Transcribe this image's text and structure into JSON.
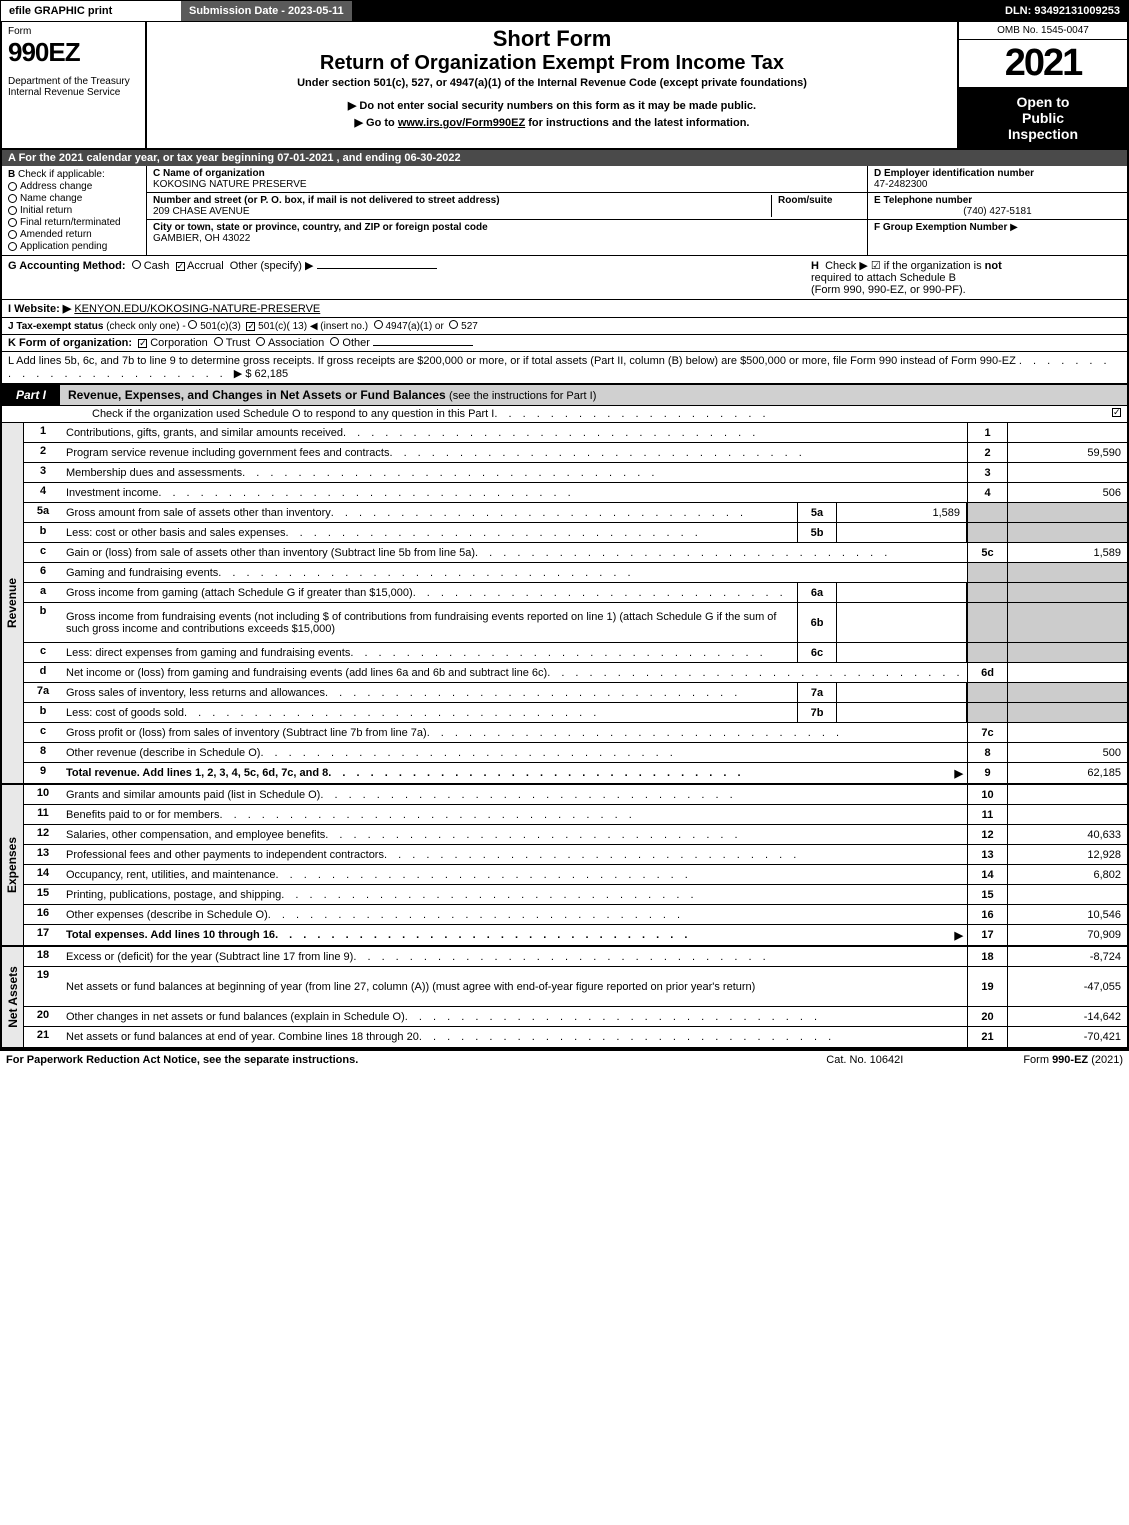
{
  "header": {
    "efile": "efile GRAPHIC print",
    "submission_date": "Submission Date - 2023-05-11",
    "dln": "DLN: 93492131009253"
  },
  "form_id": {
    "form_label": "Form",
    "form_number": "990EZ",
    "dept": "Department of the Treasury\nInternal Revenue Service"
  },
  "titles": {
    "short": "Short Form",
    "return": "Return of Organization Exempt From Income Tax",
    "under": "Under section 501(c), 527, or 4947(a)(1) of the Internal Revenue Code (except private foundations)",
    "noenter": "▶ Do not enter social security numbers on this form as it may be made public.",
    "goto_prefix": "▶ Go to ",
    "goto_link": "www.irs.gov/Form990EZ",
    "goto_suffix": " for instructions and the latest information."
  },
  "right": {
    "omb": "OMB No. 1545-0047",
    "year": "2021",
    "open1": "Open to",
    "open2": "Public",
    "open3": "Inspection"
  },
  "section_a": "A  For the 2021 calendar year, or tax year beginning 07-01-2021 , and ending 06-30-2022",
  "col_b": {
    "header": "B",
    "sub": "Check if applicable:",
    "items": [
      "Address change",
      "Name change",
      "Initial return",
      "Final return/terminated",
      "Amended return",
      "Application pending"
    ]
  },
  "col_c": {
    "name_label": "C Name of organization",
    "name": "KOKOSING NATURE PRESERVE",
    "addr_label": "Number and street (or P. O. box, if mail is not delivered to street address)",
    "addr": "209 CHASE AVENUE",
    "room_label": "Room/suite",
    "city_label": "City or town, state or province, country, and ZIP or foreign postal code",
    "city": "GAMBIER, OH  43022"
  },
  "col_d": {
    "d_label": "D Employer identification number",
    "d_val": "47-2482300",
    "e_label": "E Telephone number",
    "e_val": "(740) 427-5181",
    "f_label": "F Group Exemption Number",
    "f_arrow": "▶"
  },
  "section_g": {
    "g_label": "G Accounting Method:",
    "cash": "Cash",
    "accrual": "Accrual",
    "other": "Other (specify) ▶",
    "h_label": "H",
    "h_text": "Check ▶ ☑ if the organization is",
    "h_not": "not",
    "h_text2": "required to attach Schedule B",
    "h_text3": "(Form 990, 990-EZ, or 990-PF)."
  },
  "section_i": {
    "label": "I Website: ▶",
    "url": "KENYON.EDU/KOKOSING-NATURE-PRESERVE"
  },
  "section_j": {
    "label": "J Tax-exempt status",
    "sub": "(check only one) -",
    "opt1": "501(c)(3)",
    "opt2": "501(c)( 13) ◀ (insert no.)",
    "opt3": "4947(a)(1) or",
    "opt4": "527"
  },
  "section_k": {
    "label": "K Form of organization:",
    "corp": "Corporation",
    "trust": "Trust",
    "assoc": "Association",
    "other": "Other"
  },
  "section_l": {
    "text": "L Add lines 5b, 6c, and 7b to line 9 to determine gross receipts. If gross receipts are $200,000 or more, or if total assets (Part II, column (B) below) are $500,000 or more, file Form 990 instead of Form 990-EZ",
    "amount": "▶ $ 62,185"
  },
  "part1": {
    "label": "Part I",
    "title": "Revenue, Expenses, and Changes in Net Assets or Fund Balances",
    "note": "(see the instructions for Part I)",
    "subline": "Check if the organization used Schedule O to respond to any question in this Part I"
  },
  "revenue": {
    "label": "Revenue",
    "rows": [
      {
        "n": "1",
        "desc": "Contributions, gifts, grants, and similar amounts received",
        "end": "1",
        "val": ""
      },
      {
        "n": "2",
        "desc": "Program service revenue including government fees and contracts",
        "end": "2",
        "val": "59,590"
      },
      {
        "n": "3",
        "desc": "Membership dues and assessments",
        "end": "3",
        "val": ""
      },
      {
        "n": "4",
        "desc": "Investment income",
        "end": "4",
        "val": "506"
      },
      {
        "n": "5a",
        "desc": "Gross amount from sale of assets other than inventory",
        "mid": "5a",
        "midval": "1,589",
        "endgray": true
      },
      {
        "n": "b",
        "desc": "Less: cost or other basis and sales expenses",
        "mid": "5b",
        "midval": "",
        "endgray": true
      },
      {
        "n": "c",
        "desc": "Gain or (loss) from sale of assets other than inventory (Subtract line 5b from line 5a)",
        "end": "5c",
        "val": "1,589"
      },
      {
        "n": "6",
        "desc": "Gaming and fundraising events",
        "endgray": true,
        "nomid": true
      },
      {
        "n": "a",
        "desc": "Gross income from gaming (attach Schedule G if greater than $15,000)",
        "mid": "6a",
        "midval": "",
        "endgray": true
      },
      {
        "n": "b",
        "desc": "Gross income from fundraising events (not including $                    of contributions from fundraising events reported on line 1) (attach Schedule G if the sum of such gross income and contributions exceeds $15,000)",
        "mid": "6b",
        "midval": "",
        "endgray": true,
        "tall": true
      },
      {
        "n": "c",
        "desc": "Less: direct expenses from gaming and fundraising events",
        "mid": "6c",
        "midval": "",
        "endgray": true
      },
      {
        "n": "d",
        "desc": "Net income or (loss) from gaming and fundraising events (add lines 6a and 6b and subtract line 6c)",
        "end": "6d",
        "val": ""
      },
      {
        "n": "7a",
        "desc": "Gross sales of inventory, less returns and allowances",
        "mid": "7a",
        "midval": "",
        "endgray": true
      },
      {
        "n": "b",
        "desc": "Less: cost of goods sold",
        "mid": "7b",
        "midval": "",
        "endgray": true
      },
      {
        "n": "c",
        "desc": "Gross profit or (loss) from sales of inventory (Subtract line 7b from line 7a)",
        "end": "7c",
        "val": ""
      },
      {
        "n": "8",
        "desc": "Other revenue (describe in Schedule O)",
        "end": "8",
        "val": "500"
      },
      {
        "n": "9",
        "desc": "Total revenue. Add lines 1, 2, 3, 4, 5c, 6d, 7c, and 8",
        "end": "9",
        "val": "62,185",
        "bold": true,
        "arrow": true
      }
    ]
  },
  "expenses": {
    "label": "Expenses",
    "rows": [
      {
        "n": "10",
        "desc": "Grants and similar amounts paid (list in Schedule O)",
        "end": "10",
        "val": ""
      },
      {
        "n": "11",
        "desc": "Benefits paid to or for members",
        "end": "11",
        "val": ""
      },
      {
        "n": "12",
        "desc": "Salaries, other compensation, and employee benefits",
        "end": "12",
        "val": "40,633"
      },
      {
        "n": "13",
        "desc": "Professional fees and other payments to independent contractors",
        "end": "13",
        "val": "12,928"
      },
      {
        "n": "14",
        "desc": "Occupancy, rent, utilities, and maintenance",
        "end": "14",
        "val": "6,802"
      },
      {
        "n": "15",
        "desc": "Printing, publications, postage, and shipping",
        "end": "15",
        "val": ""
      },
      {
        "n": "16",
        "desc": "Other expenses (describe in Schedule O)",
        "end": "16",
        "val": "10,546"
      },
      {
        "n": "17",
        "desc": "Total expenses. Add lines 10 through 16",
        "end": "17",
        "val": "70,909",
        "bold": true,
        "arrow": true
      }
    ]
  },
  "netassets": {
    "label": "Net Assets",
    "rows": [
      {
        "n": "18",
        "desc": "Excess or (deficit) for the year (Subtract line 17 from line 9)",
        "end": "18",
        "val": "-8,724"
      },
      {
        "n": "19",
        "desc": "Net assets or fund balances at beginning of year (from line 27, column (A)) (must agree with end-of-year figure reported on prior year's return)",
        "end": "19",
        "val": "-47,055",
        "tall": true
      },
      {
        "n": "20",
        "desc": "Other changes in net assets or fund balances (explain in Schedule O)",
        "end": "20",
        "val": "-14,642"
      },
      {
        "n": "21",
        "desc": "Net assets or fund balances at end of year. Combine lines 18 through 20",
        "end": "21",
        "val": "-70,421"
      }
    ]
  },
  "footer": {
    "left": "For Paperwork Reduction Act Notice, see the separate instructions.",
    "mid": "Cat. No. 10642I",
    "right_prefix": "Form ",
    "right_bold": "990-EZ",
    "right_suffix": " (2021)"
  }
}
